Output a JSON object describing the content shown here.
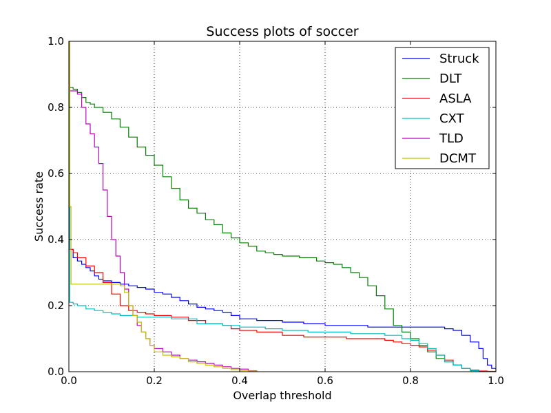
{
  "chart_data": {
    "type": "line",
    "title": "Success plots of soccer",
    "xlabel": "Overlap threshold",
    "ylabel": "Success rate",
    "xlim": [
      0,
      1
    ],
    "ylim": [
      0,
      1
    ],
    "xticks": [
      0,
      0.2,
      0.4,
      0.6,
      0.8,
      1.0
    ],
    "xtick_labels": [
      "0.0",
      "0.2",
      "0.4",
      "0.6",
      "0.8",
      "1.0"
    ],
    "yticks": [
      0,
      0.2,
      0.4,
      0.6,
      0.8,
      1.0
    ],
    "ytick_labels": [
      "0.0",
      "0.2",
      "0.4",
      "0.6",
      "0.8",
      "1.0"
    ],
    "grid": true,
    "legend_position": "top-right",
    "series": [
      {
        "name": "Struck",
        "color": "#0000ff",
        "x": [
          0,
          0.002,
          0.01,
          0.02,
          0.03,
          0.04,
          0.05,
          0.06,
          0.07,
          0.08,
          0.1,
          0.12,
          0.14,
          0.16,
          0.18,
          0.2,
          0.22,
          0.24,
          0.26,
          0.28,
          0.3,
          0.32,
          0.34,
          0.36,
          0.38,
          0.4,
          0.44,
          0.5,
          0.55,
          0.6,
          0.65,
          0.7,
          0.75,
          0.8,
          0.84,
          0.86,
          0.88,
          0.9,
          0.92,
          0.94,
          0.96,
          0.97,
          0.98,
          0.99,
          1.0
        ],
        "y": [
          1.0,
          0.37,
          0.345,
          0.335,
          0.325,
          0.315,
          0.305,
          0.29,
          0.28,
          0.275,
          0.27,
          0.265,
          0.26,
          0.255,
          0.25,
          0.24,
          0.235,
          0.225,
          0.215,
          0.205,
          0.195,
          0.19,
          0.185,
          0.18,
          0.17,
          0.16,
          0.155,
          0.15,
          0.145,
          0.14,
          0.14,
          0.135,
          0.135,
          0.135,
          0.135,
          0.135,
          0.13,
          0.125,
          0.11,
          0.09,
          0.07,
          0.04,
          0.02,
          0.01,
          0.0
        ]
      },
      {
        "name": "DLT",
        "color": "#008000",
        "x": [
          0,
          0.002,
          0.01,
          0.02,
          0.03,
          0.04,
          0.05,
          0.06,
          0.08,
          0.1,
          0.12,
          0.14,
          0.16,
          0.18,
          0.2,
          0.22,
          0.24,
          0.26,
          0.28,
          0.3,
          0.32,
          0.34,
          0.36,
          0.38,
          0.4,
          0.42,
          0.44,
          0.46,
          0.48,
          0.5,
          0.54,
          0.58,
          0.6,
          0.62,
          0.64,
          0.66,
          0.68,
          0.7,
          0.72,
          0.74,
          0.76,
          0.78,
          0.8,
          0.82,
          0.84,
          0.86,
          0.88,
          0.9,
          0.92,
          0.94,
          0.96
        ],
        "y": [
          1.0,
          0.86,
          0.855,
          0.845,
          0.83,
          0.815,
          0.81,
          0.8,
          0.785,
          0.765,
          0.74,
          0.71,
          0.68,
          0.655,
          0.625,
          0.59,
          0.555,
          0.52,
          0.495,
          0.48,
          0.46,
          0.445,
          0.42,
          0.405,
          0.39,
          0.38,
          0.365,
          0.36,
          0.355,
          0.35,
          0.345,
          0.335,
          0.33,
          0.325,
          0.315,
          0.3,
          0.285,
          0.26,
          0.23,
          0.19,
          0.14,
          0.12,
          0.1,
          0.08,
          0.06,
          0.04,
          0.03,
          0.02,
          0.01,
          0.005,
          0.0
        ]
      },
      {
        "name": "ASLA",
        "color": "#ff0000",
        "x": [
          0,
          0.002,
          0.01,
          0.02,
          0.04,
          0.06,
          0.08,
          0.1,
          0.12,
          0.14,
          0.16,
          0.18,
          0.2,
          0.24,
          0.28,
          0.32,
          0.36,
          0.38,
          0.4,
          0.44,
          0.5,
          0.55,
          0.6,
          0.65,
          0.7,
          0.74,
          0.76,
          0.78,
          0.8,
          0.82,
          0.84,
          0.86,
          0.88,
          0.9,
          0.92,
          0.94,
          0.96,
          0.98,
          1.0
        ],
        "y": [
          1.0,
          0.37,
          0.36,
          0.345,
          0.32,
          0.3,
          0.27,
          0.235,
          0.2,
          0.185,
          0.18,
          0.175,
          0.17,
          0.165,
          0.155,
          0.145,
          0.14,
          0.13,
          0.125,
          0.12,
          0.11,
          0.105,
          0.105,
          0.1,
          0.1,
          0.095,
          0.09,
          0.085,
          0.08,
          0.075,
          0.065,
          0.05,
          0.035,
          0.02,
          0.01,
          0.005,
          0.002,
          0.001,
          0.0
        ]
      },
      {
        "name": "CXT",
        "color": "#00bfbf",
        "x": [
          0,
          0.002,
          0.01,
          0.02,
          0.04,
          0.06,
          0.08,
          0.1,
          0.12,
          0.14,
          0.16,
          0.2,
          0.24,
          0.3,
          0.36,
          0.4,
          0.46,
          0.5,
          0.56,
          0.6,
          0.66,
          0.7,
          0.74,
          0.78,
          0.8,
          0.82,
          0.84,
          0.86,
          0.88,
          0.9,
          0.92,
          0.94,
          0.96
        ],
        "y": [
          1.0,
          0.21,
          0.205,
          0.2,
          0.19,
          0.185,
          0.18,
          0.175,
          0.17,
          0.17,
          0.165,
          0.165,
          0.16,
          0.145,
          0.14,
          0.135,
          0.13,
          0.125,
          0.12,
          0.12,
          0.115,
          0.115,
          0.11,
          0.1,
          0.095,
          0.085,
          0.07,
          0.05,
          0.03,
          0.02,
          0.01,
          0.003,
          0.0
        ]
      },
      {
        "name": "TLD",
        "color": "#bf00bf",
        "x": [
          0,
          0.002,
          0.01,
          0.02,
          0.03,
          0.04,
          0.05,
          0.06,
          0.07,
          0.08,
          0.09,
          0.1,
          0.11,
          0.12,
          0.13,
          0.14,
          0.15,
          0.16,
          0.17,
          0.18,
          0.19,
          0.2,
          0.22,
          0.24,
          0.26,
          0.28,
          0.3,
          0.32,
          0.34,
          0.36,
          0.38,
          0.4,
          0.42,
          0.44
        ],
        "y": [
          1.0,
          0.85,
          0.85,
          0.84,
          0.8,
          0.75,
          0.72,
          0.68,
          0.63,
          0.55,
          0.47,
          0.4,
          0.35,
          0.3,
          0.25,
          0.2,
          0.17,
          0.14,
          0.12,
          0.1,
          0.08,
          0.07,
          0.06,
          0.05,
          0.04,
          0.035,
          0.03,
          0.025,
          0.02,
          0.015,
          0.01,
          0.008,
          0.003,
          0.0
        ]
      },
      {
        "name": "DCMT",
        "color": "#bfbf00",
        "x": [
          0,
          0.002,
          0.005,
          0.01,
          0.05,
          0.1,
          0.12,
          0.13,
          0.14,
          0.15,
          0.16,
          0.17,
          0.18,
          0.19,
          0.2,
          0.22,
          0.24,
          0.26,
          0.28,
          0.3,
          0.32,
          0.34,
          0.36,
          0.38,
          0.4,
          0.42,
          0.44
        ],
        "y": [
          1.0,
          0.5,
          0.265,
          0.265,
          0.265,
          0.265,
          0.26,
          0.24,
          0.2,
          0.17,
          0.15,
          0.12,
          0.1,
          0.08,
          0.06,
          0.05,
          0.045,
          0.04,
          0.03,
          0.025,
          0.02,
          0.015,
          0.01,
          0.006,
          0.004,
          0.002,
          0.0
        ]
      }
    ]
  }
}
